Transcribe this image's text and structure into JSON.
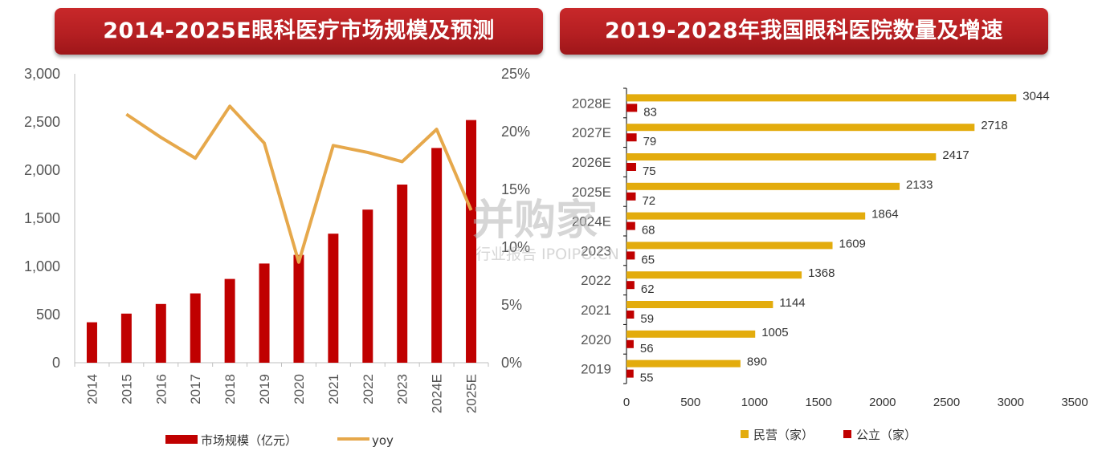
{
  "left_title": "2014-2025E眼科医疗市场规模及预测",
  "right_title": "2019-2028年我国眼科医院数量及增速",
  "watermark": {
    "main": "并购家",
    "sub": "行业报告 IPOIPO.CN"
  },
  "colors": {
    "banner": "#b51f22",
    "bar_red": "#c00000",
    "line_gold": "#e6a84b",
    "bar_gold": "#e3ac0d"
  },
  "chart_data": [
    {
      "type": "bar",
      "categories": [
        "2014",
        "2015",
        "2016",
        "2017",
        "2018",
        "2019",
        "2020",
        "2021",
        "2022",
        "2023",
        "2024E",
        "2025E"
      ],
      "series": [
        {
          "name": "市场规模（亿元）",
          "type": "bar",
          "axis": "left",
          "values": [
            420,
            510,
            610,
            720,
            870,
            1030,
            1120,
            1340,
            1590,
            1850,
            2230,
            2520
          ]
        },
        {
          "name": "yoy",
          "type": "line",
          "axis": "right",
          "values": [
            null,
            21.5,
            19.5,
            17.7,
            22.2,
            19.0,
            8.7,
            18.8,
            18.2,
            17.4,
            20.2,
            13.2
          ]
        }
      ],
      "y_left": {
        "min": 0,
        "max": 3000,
        "ticks": [
          "0",
          "500",
          "1,000",
          "1,500",
          "2,000",
          "2,500",
          "3,000"
        ]
      },
      "y_right": {
        "min": 0,
        "max": 25,
        "ticks": [
          "0%",
          "5%",
          "10%",
          "15%",
          "20%",
          "25%"
        ]
      },
      "legend": [
        "市场规模（亿元）",
        "yoy"
      ],
      "legend_position": "bottom"
    },
    {
      "type": "bar",
      "orientation": "horizontal",
      "categories": [
        "2019",
        "2020",
        "2021",
        "2022",
        "2023",
        "2024E",
        "2025E",
        "2026E",
        "2027E",
        "2028E"
      ],
      "series": [
        {
          "name": "民营（家）",
          "values": [
            890,
            1005,
            1144,
            1368,
            1609,
            1864,
            2133,
            2417,
            2718,
            3044
          ]
        },
        {
          "name": "公立（家）",
          "values": [
            55,
            56,
            59,
            62,
            65,
            68,
            72,
            75,
            79,
            83
          ]
        }
      ],
      "x_axis": {
        "min": 0,
        "max": 3500,
        "ticks": [
          "0",
          "500",
          "1000",
          "1500",
          "2000",
          "2500",
          "3000",
          "3500"
        ]
      },
      "legend": [
        "民营（家）",
        "公立（家）"
      ],
      "legend_position": "bottom"
    }
  ]
}
